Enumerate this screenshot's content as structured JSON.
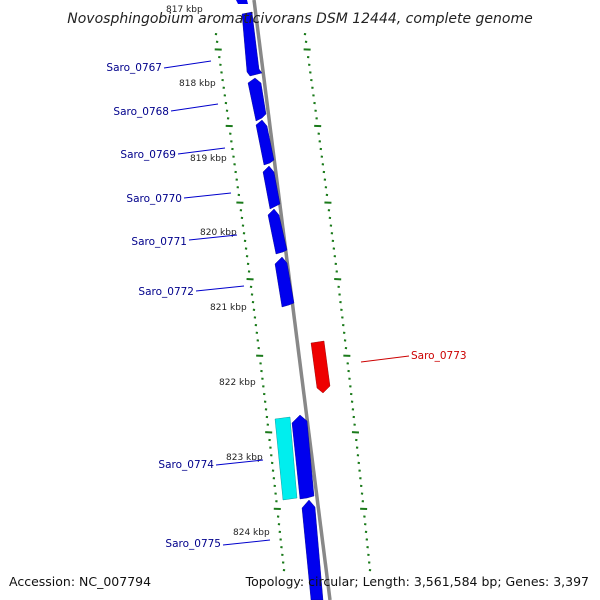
{
  "title": "Novosphingobium aromaticivorans DSM 12444, complete genome",
  "footer": {
    "accession": "Accession: NC_007794",
    "topology": "Topology: circular; Length: 3,561,584 bp; Genes: 3,397"
  },
  "colors": {
    "backbone": "#888888",
    "forward_gene": "#0000ee",
    "reverse_gene": "#ee0000",
    "highlight_gene": "#00eeee",
    "tick": "#1a7a1a",
    "forward_label": "#00008b",
    "reverse_label": "#cc0000"
  },
  "kbp_labels": [
    "817 kbp",
    "818 kbp",
    "819 kbp",
    "820 kbp",
    "821 kbp",
    "822 kbp",
    "823 kbp",
    "824 kbp"
  ],
  "genes": [
    {
      "label": "Saro_0767",
      "strand": "forward"
    },
    {
      "label": "Saro_0768",
      "strand": "forward"
    },
    {
      "label": "Saro_0769",
      "strand": "forward"
    },
    {
      "label": "Saro_0770",
      "strand": "forward"
    },
    {
      "label": "Saro_0771",
      "strand": "forward"
    },
    {
      "label": "Saro_0772",
      "strand": "forward"
    },
    {
      "label": "Saro_0773",
      "strand": "reverse"
    },
    {
      "label": "Saro_0774",
      "strand": "forward"
    },
    {
      "label": "Saro_0775",
      "strand": "forward"
    }
  ]
}
